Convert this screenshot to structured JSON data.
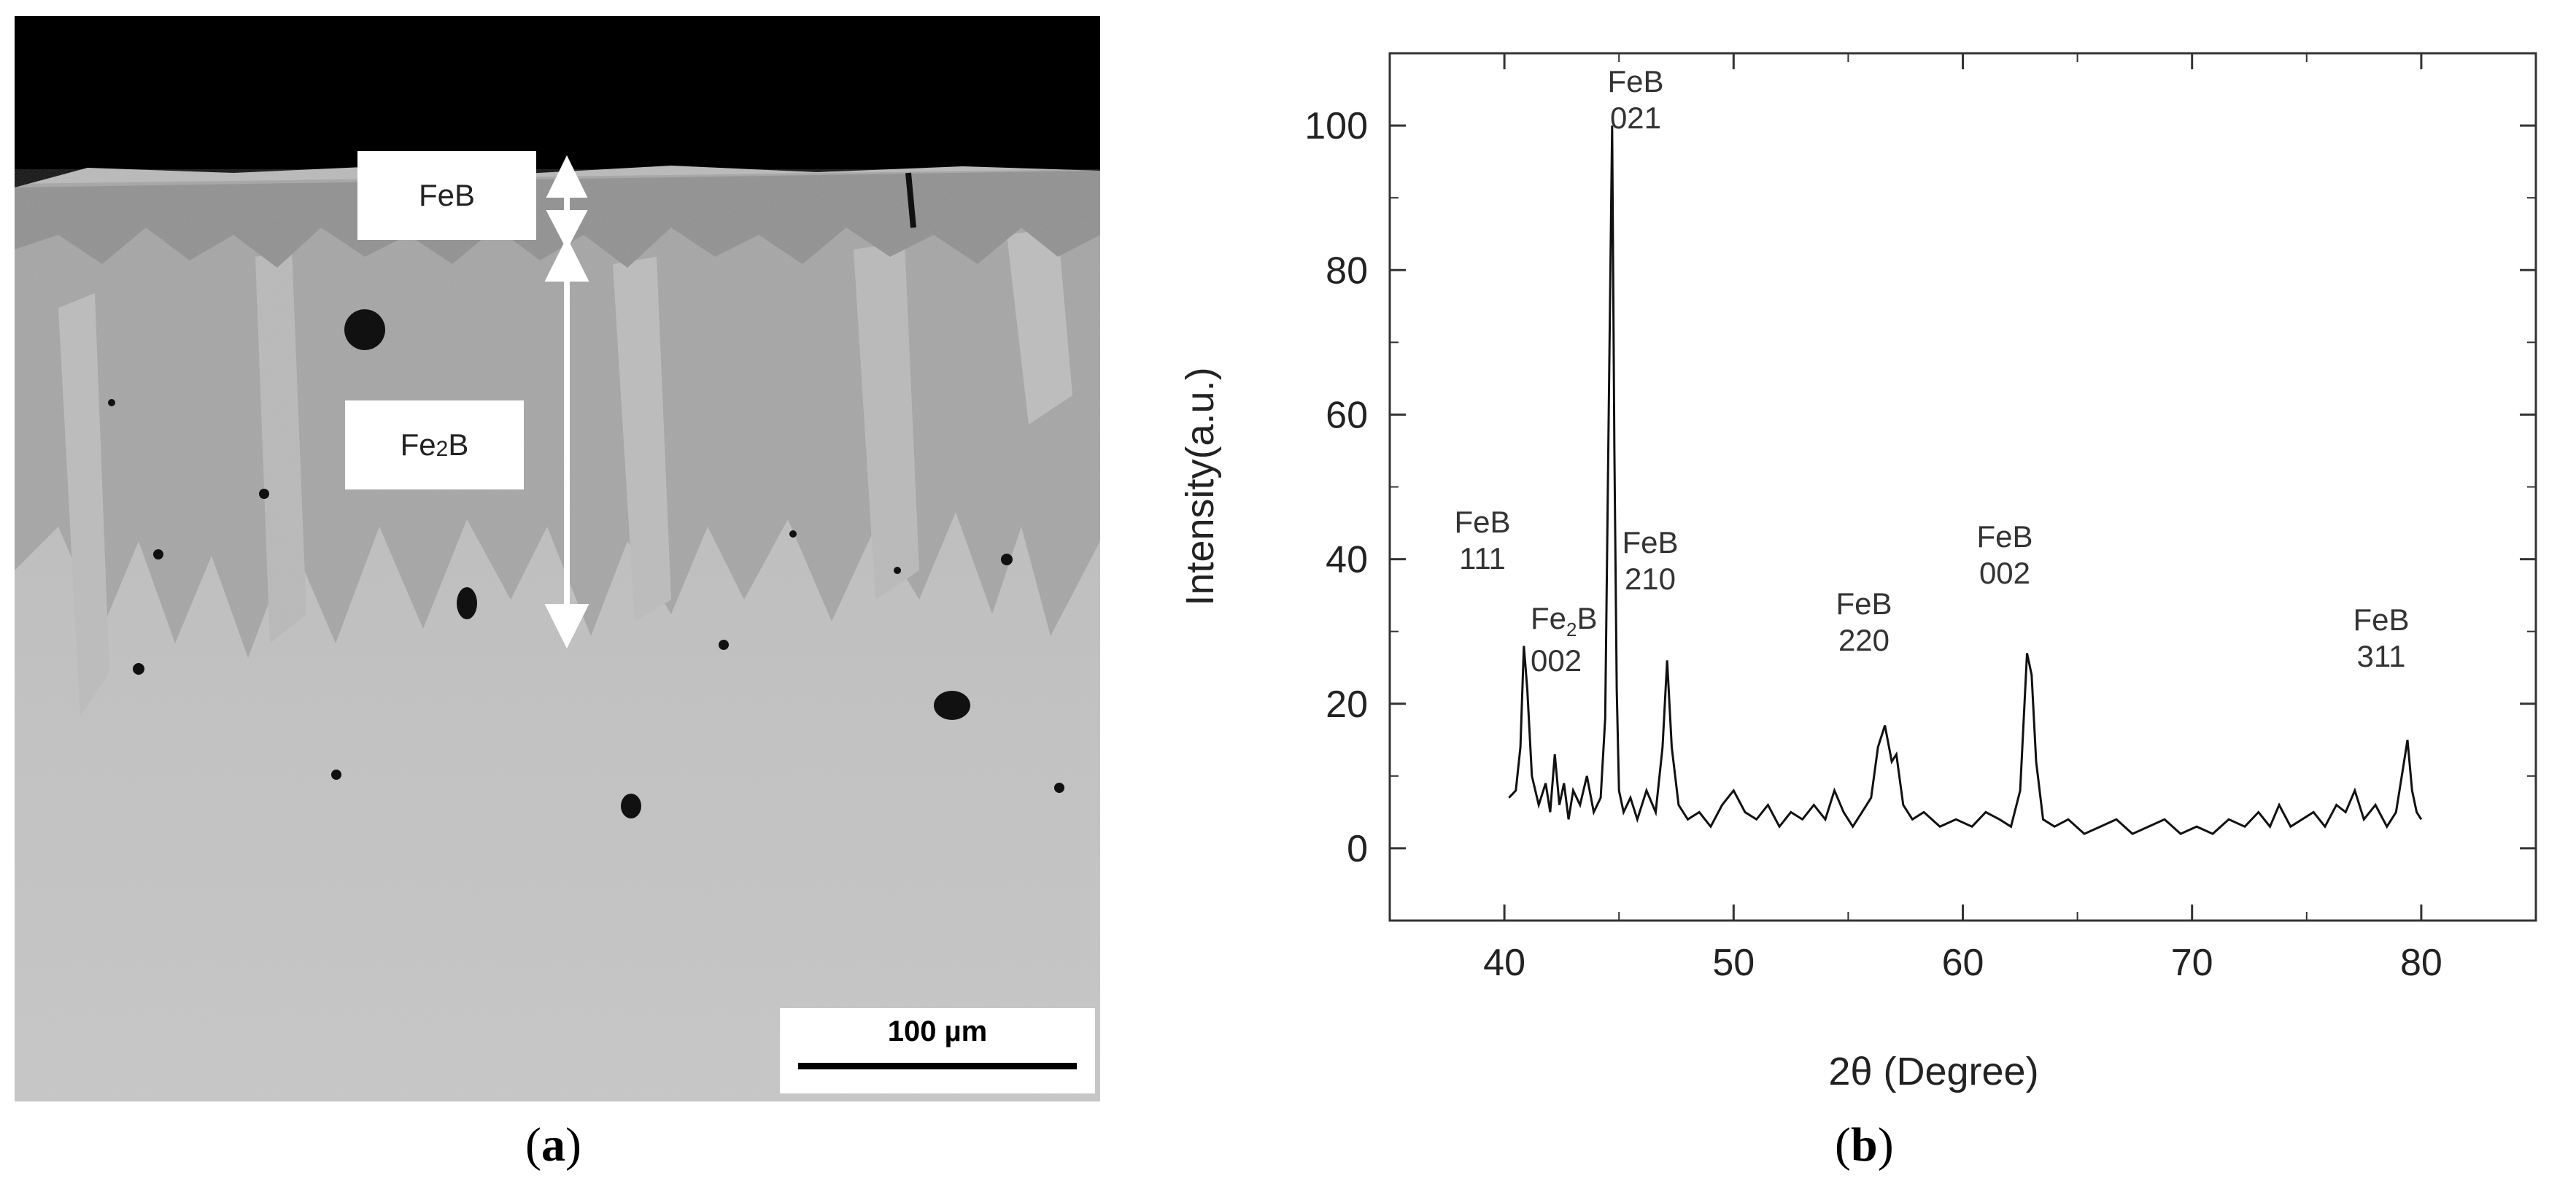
{
  "panel_a": {
    "label_feb": "FeB",
    "label_fe2b_main": "Fe",
    "label_fe2b_sub": "2",
    "label_fe2b_tail": "B",
    "scale_bar": "100 µm",
    "caption_open": "(",
    "caption_letter": "a",
    "caption_close": ")"
  },
  "panel_b": {
    "caption_open": "(",
    "caption_letter": "b",
    "caption_close": ")"
  },
  "chart_data": {
    "type": "line",
    "xlabel": "2θ (Degree)",
    "ylabel": "Intensity(a.u.)",
    "xlim": [
      35,
      85
    ],
    "ylim": [
      -10,
      110
    ],
    "xticks": [
      40,
      50,
      60,
      70,
      80
    ],
    "yticks": [
      0,
      20,
      40,
      60,
      80,
      100
    ],
    "grid": false,
    "series": [
      {
        "x": [
          40.2,
          40.5,
          40.7,
          40.85,
          41.0,
          41.2,
          41.5,
          41.8,
          42.0,
          42.2,
          42.4,
          42.6,
          42.8,
          43.0,
          43.3,
          43.6,
          43.9,
          44.2,
          44.4,
          44.55,
          44.7,
          44.8,
          44.9,
          45.0,
          45.2,
          45.5,
          45.8,
          46.2,
          46.6,
          46.9,
          47.1,
          47.3,
          47.6,
          48.0,
          48.5,
          49.0,
          49.5,
          50.0,
          50.5,
          51.0,
          51.5,
          52.0,
          52.5,
          53.0,
          53.5,
          54.0,
          54.4,
          54.8,
          55.2,
          55.6,
          56.0,
          56.3,
          56.6,
          56.9,
          57.1,
          57.4,
          57.8,
          58.3,
          59.0,
          59.7,
          60.4,
          61.0,
          61.6,
          62.1,
          62.5,
          62.8,
          63.0,
          63.2,
          63.5,
          64.0,
          64.6,
          65.3,
          66.0,
          66.7,
          67.4,
          68.1,
          68.8,
          69.5,
          70.2,
          70.9,
          71.6,
          72.3,
          72.9,
          73.4,
          73.8,
          74.3,
          74.8,
          75.3,
          75.8,
          76.3,
          76.7,
          77.1,
          77.5,
          78.0,
          78.5,
          78.9,
          79.2,
          79.4,
          79.6,
          79.8,
          80.0
        ],
        "y": [
          7,
          8,
          14,
          28,
          22,
          10,
          6,
          9,
          5,
          13,
          6,
          9,
          4,
          8,
          6,
          10,
          5,
          7,
          18,
          60,
          100,
          55,
          22,
          8,
          5,
          7,
          4,
          8,
          5,
          14,
          26,
          14,
          6,
          4,
          5,
          3,
          6,
          8,
          5,
          4,
          6,
          3,
          5,
          4,
          6,
          4,
          8,
          5,
          3,
          5,
          7,
          14,
          17,
          12,
          13,
          6,
          4,
          5,
          3,
          4,
          3,
          5,
          4,
          3,
          8,
          27,
          24,
          12,
          4,
          3,
          4,
          2,
          3,
          4,
          2,
          3,
          4,
          2,
          3,
          2,
          4,
          3,
          5,
          3,
          6,
          3,
          4,
          5,
          3,
          6,
          5,
          8,
          4,
          6,
          3,
          5,
          11,
          15,
          8,
          5,
          4
        ]
      }
    ],
    "annotations": [
      {
        "lines": [
          "FeB",
          "111"
        ],
        "x": 40.9
      },
      {
        "lines": [
          "Fe",
          "2",
          "B",
          "002"
        ],
        "x": 42.2,
        "kind": "subscript"
      },
      {
        "lines": [
          "FeB",
          "021"
        ],
        "x": 46.4
      },
      {
        "lines": [
          "FeB",
          "210"
        ],
        "x": 48.0
      },
      {
        "lines": [
          "FeB",
          "220"
        ],
        "x": 56.5
      },
      {
        "lines": [
          "FeB",
          "002"
        ],
        "x": 63.3
      },
      {
        "lines": [
          "FeB",
          "311"
        ],
        "x": 79.6
      }
    ]
  }
}
